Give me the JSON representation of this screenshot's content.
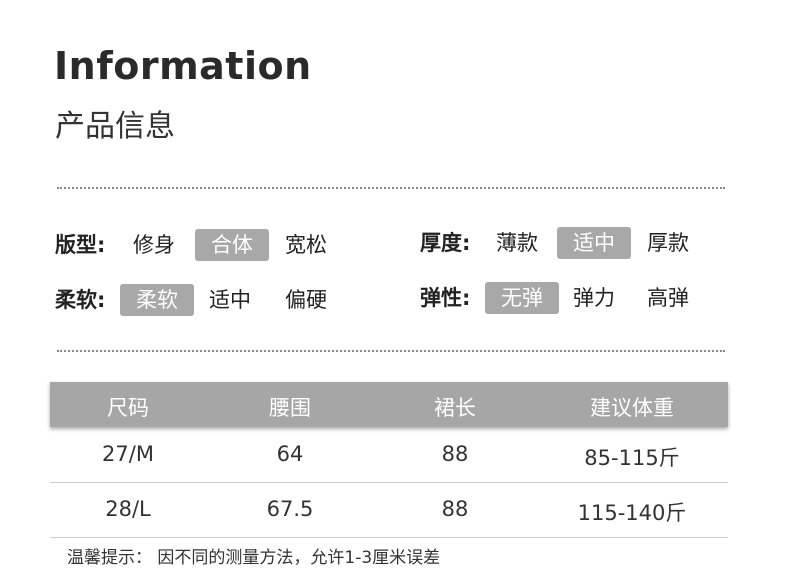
{
  "header": {
    "title": "Information",
    "subtitle": "产品信息"
  },
  "attributes": [
    {
      "label": "版型:",
      "options": [
        "修身",
        "合体",
        "宽松"
      ],
      "selected": "合体"
    },
    {
      "label": "厚度:",
      "options": [
        "薄款",
        "适中",
        "厚款"
      ],
      "selected": "适中"
    },
    {
      "label": "柔软:",
      "options": [
        "柔软",
        "适中",
        "偏硬"
      ],
      "selected": "柔软"
    },
    {
      "label": "弹性:",
      "options": [
        "无弹",
        "弹力",
        "高弹"
      ],
      "selected": "无弹"
    }
  ],
  "table": {
    "headers": [
      "尺码",
      "腰围",
      "裙长",
      "建议体重"
    ],
    "rows": [
      [
        "27/M",
        "64",
        "88",
        "85-115斤"
      ],
      [
        "28/L",
        "67.5",
        "88",
        "115-140斤"
      ]
    ]
  },
  "note": "温馨提示： 因不同的测量方法，允许1-3厘米误差",
  "colors": {
    "chip": "#a8a8a8",
    "header": "#a6a6a6"
  }
}
